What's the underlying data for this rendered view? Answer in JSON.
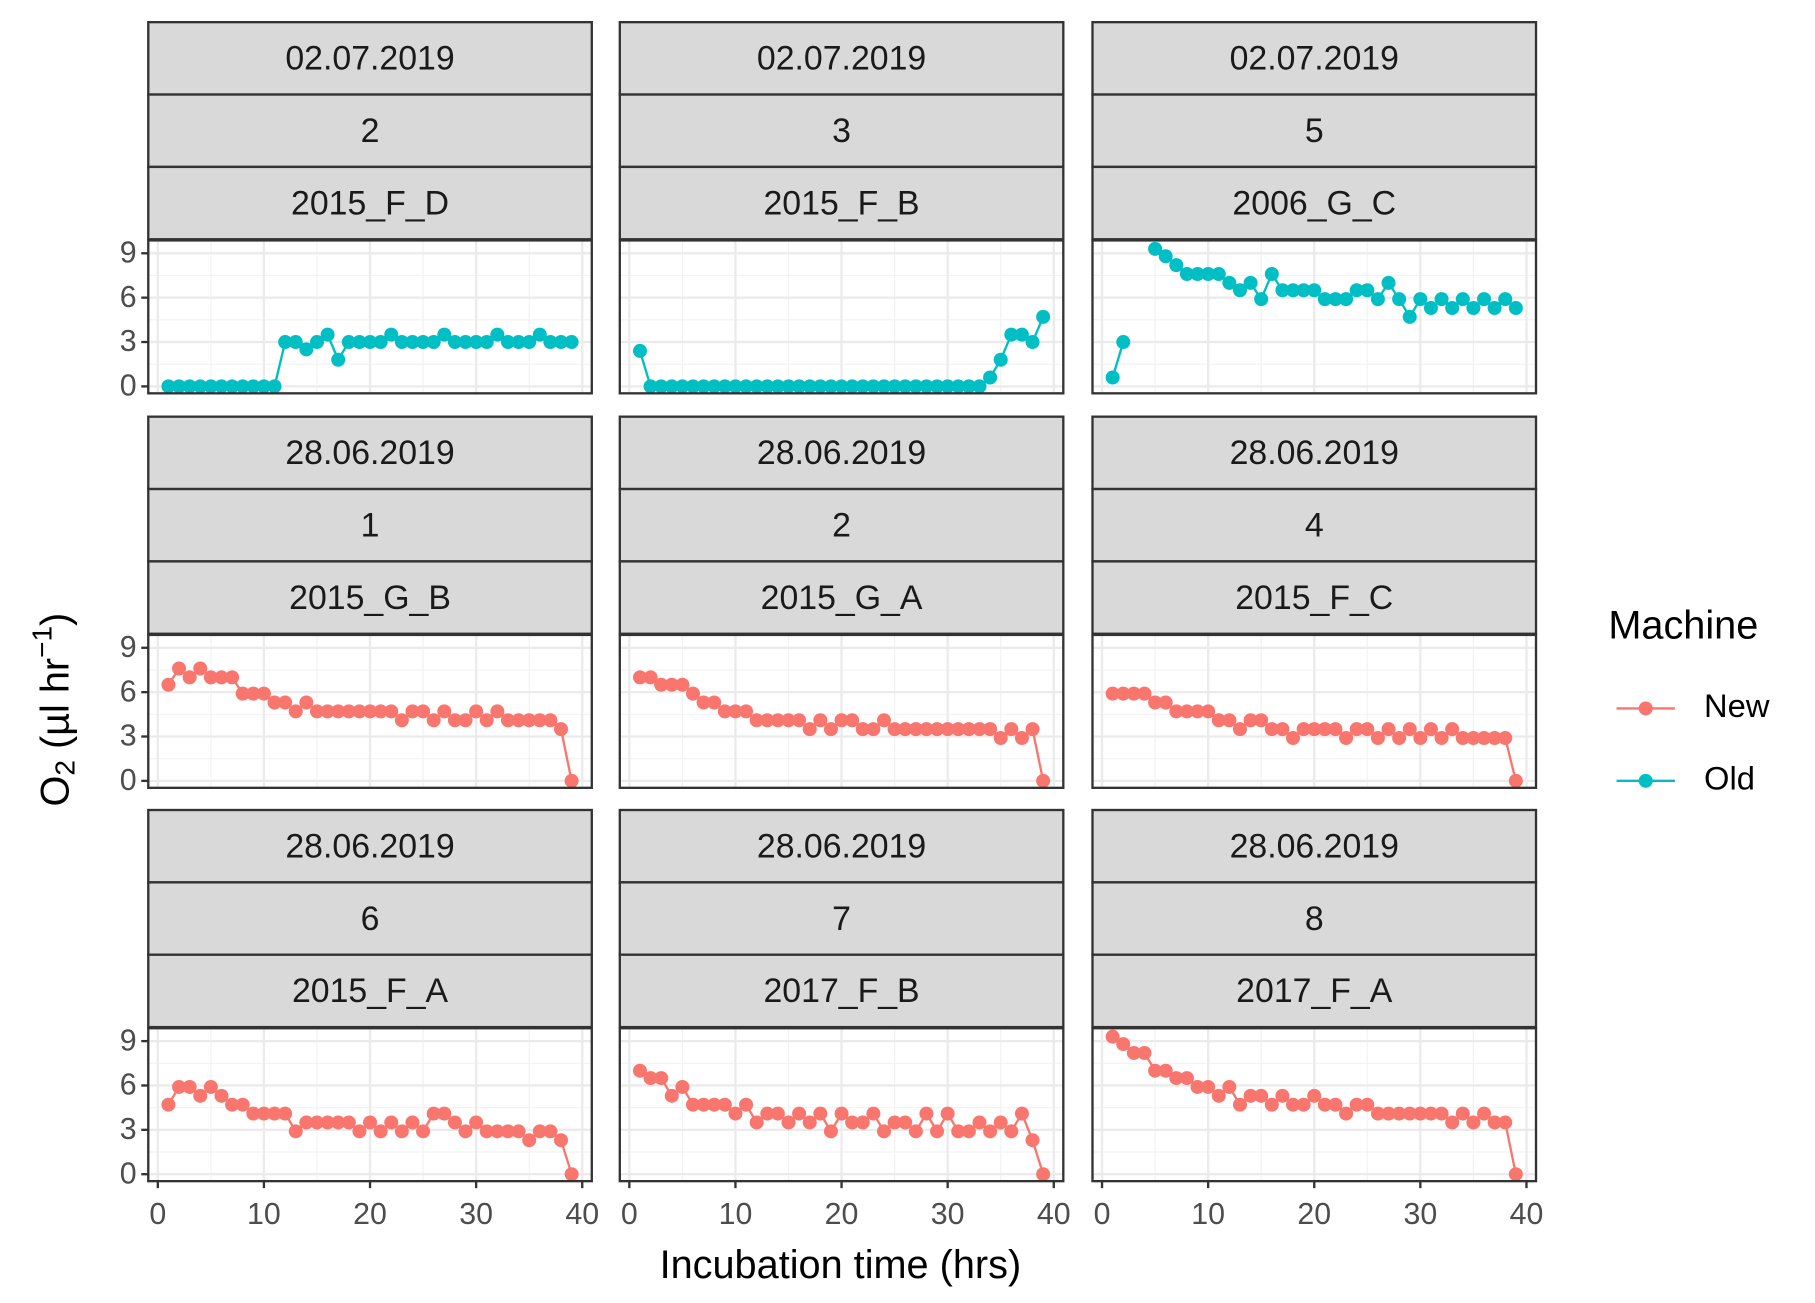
{
  "chart_data": {
    "type": "line",
    "xlabel": "Incubation time (hrs)",
    "ylabel": {
      "main": "O",
      "sub": "2",
      "mid": " (µl hr",
      "sup": "−1",
      "end": ")"
    },
    "legend": {
      "title": "Machine",
      "entries": [
        {
          "name": "New",
          "color": "#F8766D"
        },
        {
          "name": "Old",
          "color": "#00BFC4"
        }
      ]
    },
    "xlim": [
      -0.9,
      40.9
    ],
    "xticks": [
      0,
      10,
      20,
      30,
      40
    ],
    "ylim": [
      -0.47,
      9.87
    ],
    "yticks": [
      0,
      3,
      6,
      9
    ],
    "grid": true,
    "x": [
      1,
      2,
      3,
      4,
      5,
      6,
      7,
      8,
      9,
      10,
      11,
      12,
      13,
      14,
      15,
      16,
      17,
      18,
      19,
      20,
      21,
      22,
      23,
      24,
      25,
      26,
      27,
      28,
      29,
      30,
      31,
      32,
      33,
      34,
      35,
      36,
      37,
      38,
      39
    ],
    "panels": [
      {
        "strips": [
          "02.07.2019",
          "2",
          "2015_F_D"
        ],
        "series": {
          "name": "Old",
          "values": [
            0,
            0,
            0,
            0,
            0,
            0,
            0,
            0,
            0,
            0,
            0,
            3,
            3,
            2.5,
            3,
            3.5,
            1.8,
            3,
            3,
            3,
            3,
            3.5,
            3,
            3,
            3,
            3,
            3.5,
            3,
            3,
            3,
            3,
            3.5,
            3,
            3,
            3,
            3.5,
            3,
            3,
            3
          ]
        }
      },
      {
        "strips": [
          "02.07.2019",
          "3",
          "2015_F_B"
        ],
        "series": {
          "name": "Old",
          "values": [
            2.4,
            0,
            0,
            0,
            0,
            0,
            0,
            0,
            0,
            0,
            0,
            0,
            0,
            0,
            0,
            0,
            0,
            0,
            0,
            0,
            0,
            0,
            0,
            0,
            0,
            0,
            0,
            0,
            0,
            0,
            0,
            0,
            0,
            0.6,
            1.8,
            3.5,
            3.5,
            3,
            4.7
          ]
        }
      },
      {
        "strips": [
          "02.07.2019",
          "5",
          "2006_G_C"
        ],
        "series": {
          "name": "Old",
          "values": [
            0.6,
            3,
            null,
            null,
            9.3,
            8.8,
            8.2,
            7.6,
            7.6,
            7.6,
            7.6,
            7,
            6.5,
            7,
            5.9,
            7.6,
            6.5,
            6.5,
            6.5,
            6.5,
            5.9,
            5.9,
            5.9,
            6.5,
            6.5,
            5.9,
            7,
            5.9,
            4.7,
            5.9,
            5.3,
            5.9,
            5.3,
            5.9,
            5.3,
            5.9,
            5.3,
            5.9,
            5.3
          ]
        }
      },
      {
        "strips": [
          "28.06.2019",
          "1",
          "2015_G_B"
        ],
        "series": {
          "name": "New",
          "values": [
            6.5,
            7.6,
            7,
            7.6,
            7,
            7,
            7,
            5.9,
            5.9,
            5.9,
            5.3,
            5.3,
            4.7,
            5.3,
            4.7,
            4.7,
            4.7,
            4.7,
            4.7,
            4.7,
            4.7,
            4.7,
            4.1,
            4.7,
            4.7,
            4.1,
            4.7,
            4.1,
            4.1,
            4.7,
            4.1,
            4.7,
            4.1,
            4.1,
            4.1,
            4.1,
            4.1,
            3.5,
            0
          ]
        }
      },
      {
        "strips": [
          "28.06.2019",
          "2",
          "2015_G_A"
        ],
        "series": {
          "name": "New",
          "values": [
            7,
            7,
            6.5,
            6.5,
            6.5,
            5.9,
            5.3,
            5.3,
            4.7,
            4.7,
            4.7,
            4.1,
            4.1,
            4.1,
            4.1,
            4.1,
            3.5,
            4.1,
            3.5,
            4.1,
            4.1,
            3.5,
            3.5,
            4.1,
            3.5,
            3.5,
            3.5,
            3.5,
            3.5,
            3.5,
            3.5,
            3.5,
            3.5,
            3.5,
            2.9,
            3.5,
            2.9,
            3.5,
            0
          ]
        }
      },
      {
        "strips": [
          "28.06.2019",
          "4",
          "2015_F_C"
        ],
        "series": {
          "name": "New",
          "values": [
            5.9,
            5.9,
            5.9,
            5.9,
            5.3,
            5.3,
            4.7,
            4.7,
            4.7,
            4.7,
            4.1,
            4.1,
            3.5,
            4.1,
            4.1,
            3.5,
            3.5,
            2.9,
            3.5,
            3.5,
            3.5,
            3.5,
            2.9,
            3.5,
            3.5,
            2.9,
            3.5,
            2.9,
            3.5,
            2.9,
            3.5,
            2.9,
            3.5,
            2.9,
            2.9,
            2.9,
            2.9,
            2.9,
            0
          ]
        }
      },
      {
        "strips": [
          "28.06.2019",
          "6",
          "2015_F_A"
        ],
        "series": {
          "name": "New",
          "values": [
            4.7,
            5.9,
            5.9,
            5.3,
            5.9,
            5.3,
            4.7,
            4.7,
            4.1,
            4.1,
            4.1,
            4.1,
            2.9,
            3.5,
            3.5,
            3.5,
            3.5,
            3.5,
            2.9,
            3.5,
            2.9,
            3.5,
            2.9,
            3.5,
            2.9,
            4.1,
            4.1,
            3.5,
            2.9,
            3.5,
            2.9,
            2.9,
            2.9,
            2.9,
            2.3,
            2.9,
            2.9,
            2.3,
            0
          ]
        }
      },
      {
        "strips": [
          "28.06.2019",
          "7",
          "2017_F_B"
        ],
        "series": {
          "name": "New",
          "values": [
            7,
            6.5,
            6.5,
            5.3,
            5.9,
            4.7,
            4.7,
            4.7,
            4.7,
            4.1,
            4.7,
            3.5,
            4.1,
            4.1,
            3.5,
            4.1,
            3.5,
            4.1,
            2.9,
            4.1,
            3.5,
            3.5,
            4.1,
            2.9,
            3.5,
            3.5,
            2.9,
            4.1,
            2.9,
            4.1,
            2.9,
            2.9,
            3.5,
            2.9,
            3.5,
            2.9,
            4.1,
            2.3,
            0
          ]
        }
      },
      {
        "strips": [
          "28.06.2019",
          "8",
          "2017_F_A"
        ],
        "series": {
          "name": "New",
          "values": [
            9.3,
            8.8,
            8.2,
            8.2,
            7,
            7,
            6.5,
            6.5,
            5.9,
            5.9,
            5.3,
            5.9,
            4.7,
            5.3,
            5.3,
            4.7,
            5.3,
            4.7,
            4.7,
            5.3,
            4.7,
            4.7,
            4.1,
            4.7,
            4.7,
            4.1,
            4.1,
            4.1,
            4.1,
            4.1,
            4.1,
            4.1,
            3.5,
            4.1,
            3.5,
            4.1,
            3.5,
            3.5,
            0
          ]
        }
      }
    ]
  }
}
